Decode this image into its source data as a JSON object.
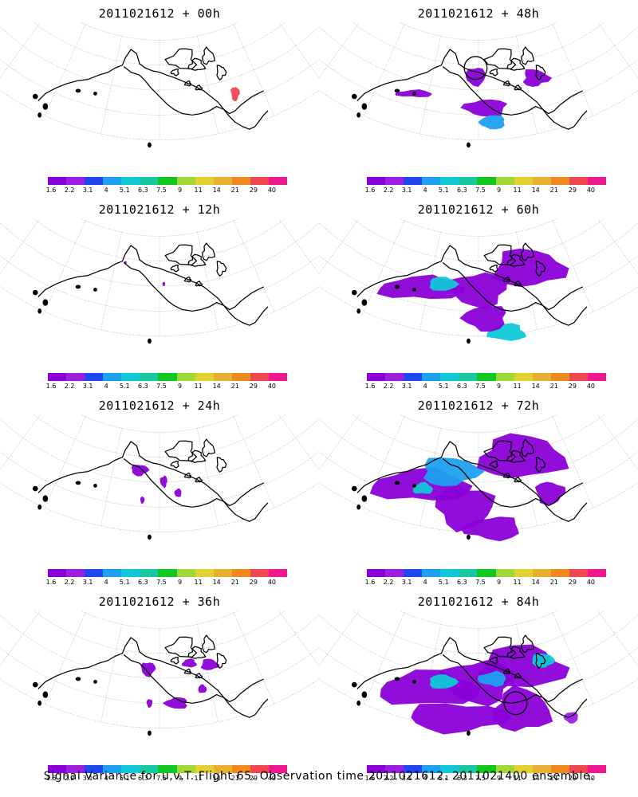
{
  "caption": "Signal Variance for u,v,T. Flight 65. Observation time 2011021612. 2011021400 ensemble.",
  "colorbar": {
    "labels": [
      "1.6",
      "2.2",
      "3.1",
      "4",
      "5.1",
      "6.3",
      "7.5",
      "9",
      "11",
      "14",
      "21",
      "29",
      "40"
    ],
    "colors": [
      "#8a00d8",
      "#9c1fe0",
      "#2046f0",
      "#1ea0f0",
      "#10c8d8",
      "#18c8a0",
      "#10c820",
      "#a0d838",
      "#e0d030",
      "#e8b030",
      "#f08a20",
      "#f04850",
      "#f01890"
    ]
  },
  "panels": [
    {
      "title": "2011021612 + 00h",
      "lead_hours": 0
    },
    {
      "title": "2011021612 + 48h",
      "lead_hours": 48
    },
    {
      "title": "2011021612 + 12h",
      "lead_hours": 12
    },
    {
      "title": "2011021612 + 60h",
      "lead_hours": 60
    },
    {
      "title": "2011021612 + 24h",
      "lead_hours": 24
    },
    {
      "title": "2011021612 + 72h",
      "lead_hours": 72
    },
    {
      "title": "2011021612 + 36h",
      "lead_hours": 36
    },
    {
      "title": "2011021612 + 84h",
      "lead_hours": 84
    }
  ]
}
